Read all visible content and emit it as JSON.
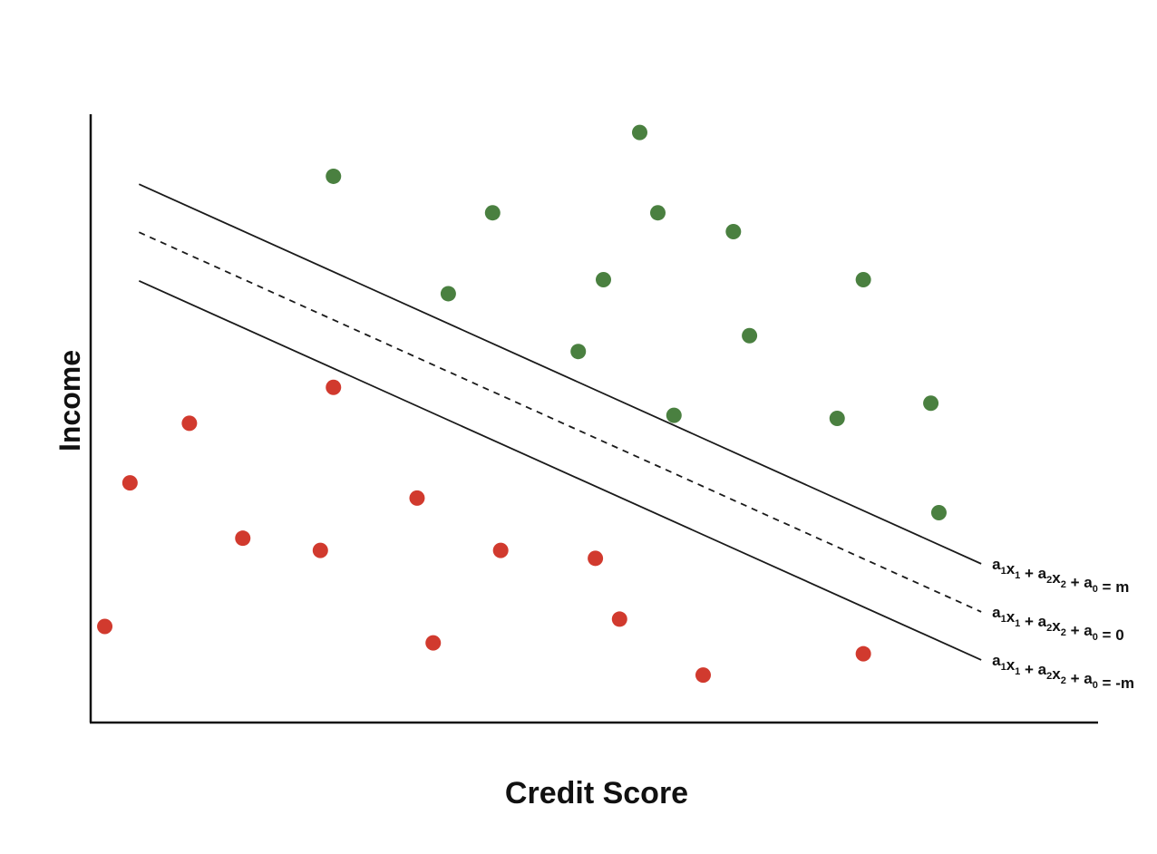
{
  "chart_data": {
    "type": "scatter",
    "xlabel": "Credit Score",
    "ylabel": "Income",
    "xlim": [
      0,
      100
    ],
    "ylim": [
      0,
      100
    ],
    "grid": false,
    "legend": "none",
    "series": [
      {
        "color": "#4a8040",
        "points": [
          {
            "x": 54.5,
            "y": 97.0
          },
          {
            "x": 24.1,
            "y": 89.8
          },
          {
            "x": 39.9,
            "y": 83.8
          },
          {
            "x": 56.3,
            "y": 83.8
          },
          {
            "x": 63.8,
            "y": 80.7
          },
          {
            "x": 35.5,
            "y": 70.5
          },
          {
            "x": 50.9,
            "y": 72.8
          },
          {
            "x": 76.7,
            "y": 72.8
          },
          {
            "x": 65.4,
            "y": 63.6
          },
          {
            "x": 48.4,
            "y": 61.0
          },
          {
            "x": 57.9,
            "y": 50.5
          },
          {
            "x": 74.1,
            "y": 50.0
          },
          {
            "x": 83.4,
            "y": 52.5
          },
          {
            "x": 84.2,
            "y": 34.5
          }
        ]
      },
      {
        "color": "#d13a2e",
        "points": [
          {
            "x": 24.1,
            "y": 55.1
          },
          {
            "x": 9.8,
            "y": 49.2
          },
          {
            "x": 3.9,
            "y": 39.4
          },
          {
            "x": 32.4,
            "y": 36.9
          },
          {
            "x": 15.1,
            "y": 30.3
          },
          {
            "x": 22.8,
            "y": 28.3
          },
          {
            "x": 40.7,
            "y": 28.3
          },
          {
            "x": 50.1,
            "y": 27.0
          },
          {
            "x": 1.4,
            "y": 15.8
          },
          {
            "x": 34.0,
            "y": 13.1
          },
          {
            "x": 52.5,
            "y": 17.0
          },
          {
            "x": 60.8,
            "y": 7.8
          },
          {
            "x": 76.7,
            "y": 11.3
          }
        ]
      }
    ],
    "lines": [
      {
        "label_parts": [
          [
            "a",
            "1"
          ],
          [
            "x",
            "1"
          ],
          [
            " + a",
            "2"
          ],
          [
            "x",
            "2"
          ],
          [
            " + a",
            "0"
          ],
          [
            " = m",
            ""
          ]
        ],
        "style": "solid",
        "x1": 4.8,
        "y1": 88.5,
        "x2": 88.4,
        "y2": 26.1
      },
      {
        "label_parts": [
          [
            "a",
            "1"
          ],
          [
            "x",
            "1"
          ],
          [
            " + a",
            "2"
          ],
          [
            "x",
            "2"
          ],
          [
            " + a",
            "0"
          ],
          [
            " = 0",
            ""
          ]
        ],
        "style": "dashed",
        "x1": 4.8,
        "y1": 80.6,
        "x2": 88.4,
        "y2": 18.2
      },
      {
        "label_parts": [
          [
            "a",
            "1"
          ],
          [
            "x",
            "1"
          ],
          [
            " + a",
            "2"
          ],
          [
            "x",
            "2"
          ],
          [
            " + a",
            "0"
          ],
          [
            " = -m",
            ""
          ]
        ],
        "style": "solid",
        "x1": 4.8,
        "y1": 72.6,
        "x2": 88.4,
        "y2": 10.3
      }
    ]
  }
}
